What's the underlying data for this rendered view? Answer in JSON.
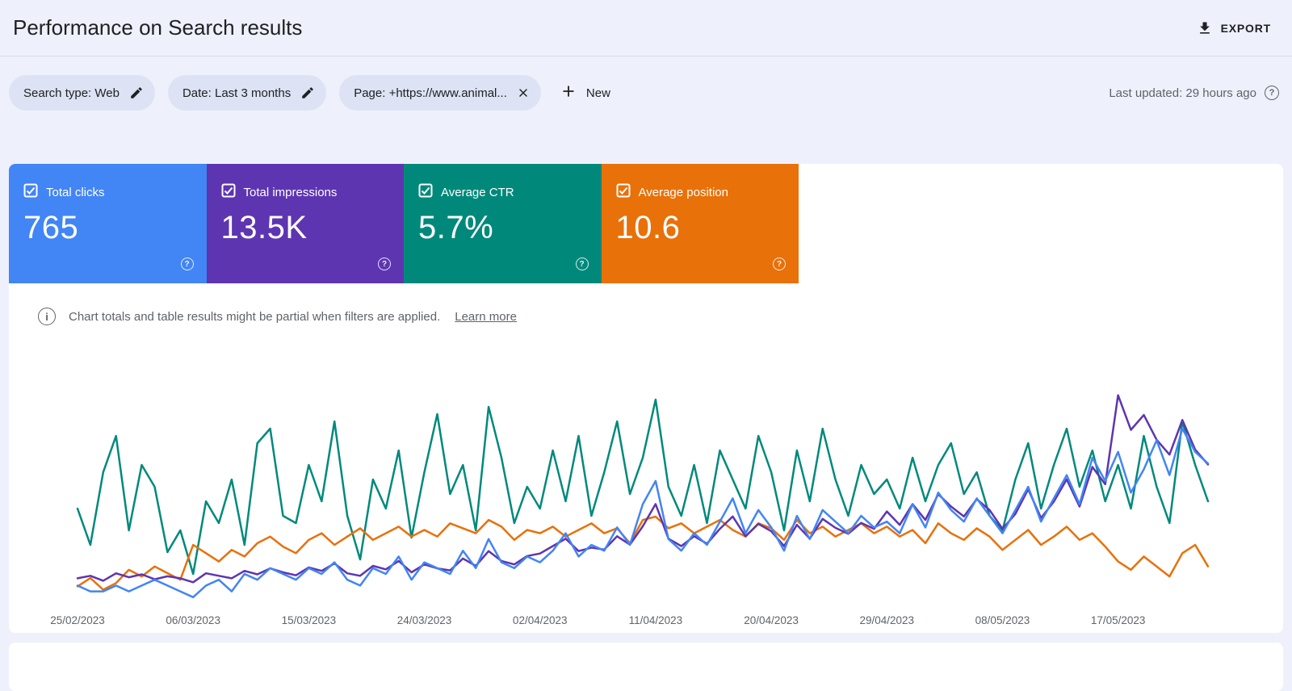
{
  "page": {
    "title": "Performance on Search results",
    "export_label": "EXPORT",
    "last_updated": "Last updated: 29 hours ago"
  },
  "filters": {
    "chips": [
      {
        "label": "Search type: Web",
        "icon": "edit"
      },
      {
        "label": "Date: Last 3 months",
        "icon": "edit"
      },
      {
        "label": "Page: +https://www.animal...",
        "icon": "close"
      }
    ],
    "new_label": "New"
  },
  "metrics": [
    {
      "label": "Total clicks",
      "value": "765",
      "color": "#4285f4",
      "checked": true
    },
    {
      "label": "Total impressions",
      "value": "13.5K",
      "color": "#5e35b1",
      "checked": true
    },
    {
      "label": "Average CTR",
      "value": "5.7%",
      "color": "#00897b",
      "checked": true
    },
    {
      "label": "Average position",
      "value": "10.6",
      "color": "#e8710a",
      "checked": true
    }
  ],
  "banner": {
    "text": "Chart totals and table results might be partial when filters are applied.",
    "link": "Learn more"
  },
  "chart_data": {
    "type": "line",
    "title": "Performance on Search results",
    "x_tick_labels": [
      "25/02/2023",
      "06/03/2023",
      "15/03/2023",
      "24/03/2023",
      "02/04/2023",
      "11/04/2023",
      "20/04/2023",
      "29/04/2023",
      "08/05/2023",
      "17/05/2023"
    ],
    "x_tick_indices": [
      0,
      9,
      18,
      27,
      36,
      45,
      54,
      63,
      72,
      81
    ],
    "num_points": 89,
    "grid": false,
    "legend_position": "none",
    "series": [
      {
        "name": "Total clicks",
        "color": "#4285f4",
        "axis_min": 0,
        "axis_max": 40,
        "values": [
          3,
          2,
          2,
          3,
          2,
          3,
          4,
          3,
          2,
          1,
          3,
          4,
          2,
          5,
          4,
          6,
          5,
          4,
          6,
          5,
          7,
          4,
          3,
          6,
          5,
          8,
          4,
          7,
          6,
          5,
          9,
          6,
          11,
          7,
          6,
          8,
          7,
          9,
          12,
          8,
          10,
          9,
          13,
          10,
          17,
          21,
          11,
          9,
          12,
          10,
          14,
          18,
          12,
          16,
          13,
          9,
          15,
          11,
          16,
          14,
          12,
          15,
          13,
          14,
          12,
          17,
          13,
          19,
          16,
          14,
          18,
          15,
          12,
          16,
          20,
          14,
          18,
          22,
          17,
          25,
          21,
          26,
          19,
          23,
          28,
          22,
          30,
          26,
          24
        ]
      },
      {
        "name": "Total impressions",
        "color": "#5e35b1",
        "axis_min": 0,
        "axis_max": 470,
        "values": [
          50,
          55,
          45,
          60,
          52,
          58,
          48,
          54,
          50,
          42,
          60,
          55,
          50,
          65,
          58,
          70,
          62,
          56,
          72,
          65,
          80,
          60,
          55,
          75,
          68,
          85,
          62,
          78,
          70,
          66,
          90,
          75,
          105,
          85,
          78,
          95,
          100,
          115,
          130,
          105,
          112,
          108,
          135,
          118,
          155,
          200,
          130,
          115,
          135,
          120,
          150,
          175,
          135,
          160,
          145,
          115,
          158,
          130,
          170,
          152,
          140,
          162,
          150,
          185,
          158,
          200,
          168,
          220,
          195,
          175,
          210,
          188,
          150,
          180,
          230,
          172,
          205,
          250,
          195,
          275,
          240,
          420,
          350,
          380,
          330,
          300,
          370,
          310,
          280
        ]
      },
      {
        "name": "Average CTR",
        "color": "#00897b",
        "unit": "%",
        "axis_min": 0,
        "axis_max": 16,
        "values": [
          6.5,
          4,
          9,
          11.5,
          5,
          9.5,
          8,
          3.5,
          5,
          2,
          7,
          5.5,
          8.5,
          4,
          11,
          12,
          6,
          5.5,
          9.5,
          7,
          12.5,
          6,
          3,
          8.5,
          6.5,
          10.5,
          4.5,
          9,
          13,
          7.5,
          9.5,
          5,
          13.5,
          10,
          5.5,
          8,
          6.5,
          10.5,
          7,
          11.5,
          6,
          9,
          12.5,
          7.5,
          10,
          14,
          8,
          6,
          9.5,
          5.5,
          10.5,
          8.5,
          6.5,
          11.5,
          9,
          5,
          10.5,
          7,
          12,
          8.5,
          6,
          9.5,
          7.5,
          8.5,
          6.5,
          10,
          7,
          9.5,
          11,
          7.5,
          9,
          6,
          5,
          8.5,
          11,
          6.5,
          9.5,
          12,
          8,
          10.5,
          7,
          9.5,
          6.5,
          11.5,
          8,
          5.5,
          12.5,
          9.5,
          7
        ]
      },
      {
        "name": "Average position",
        "color": "#e8710a",
        "axis_min": 0,
        "axis_max": 14,
        "inverted_axis": true,
        "values": [
          13,
          12.5,
          13.2,
          12.8,
          12,
          12.4,
          11.8,
          12.2,
          12.6,
          10.5,
          11,
          11.5,
          10.8,
          11.2,
          10.4,
          10,
          10.6,
          11,
          10.2,
          9.8,
          10.5,
          10,
          9.5,
          10.2,
          9.8,
          9.4,
          10,
          9.6,
          10,
          9.2,
          9.5,
          9.8,
          9,
          9.4,
          10.2,
          9.6,
          9.8,
          9.4,
          10,
          9.6,
          9.2,
          9.8,
          9.5,
          10.4,
          9,
          8.8,
          9.5,
          9.2,
          9.8,
          9.4,
          9,
          9.6,
          10,
          9.2,
          9.5,
          10.2,
          9,
          9.8,
          9.4,
          10,
          9.6,
          9.2,
          9.8,
          9.4,
          10,
          9.6,
          10.4,
          9.2,
          9.8,
          10.2,
          9.5,
          10,
          10.8,
          10.2,
          9.6,
          10.5,
          10,
          9.4,
          10.2,
          9.8,
          10.6,
          11.5,
          12,
          11.2,
          11.8,
          12.4,
          11,
          10.5,
          11.8
        ]
      }
    ]
  }
}
